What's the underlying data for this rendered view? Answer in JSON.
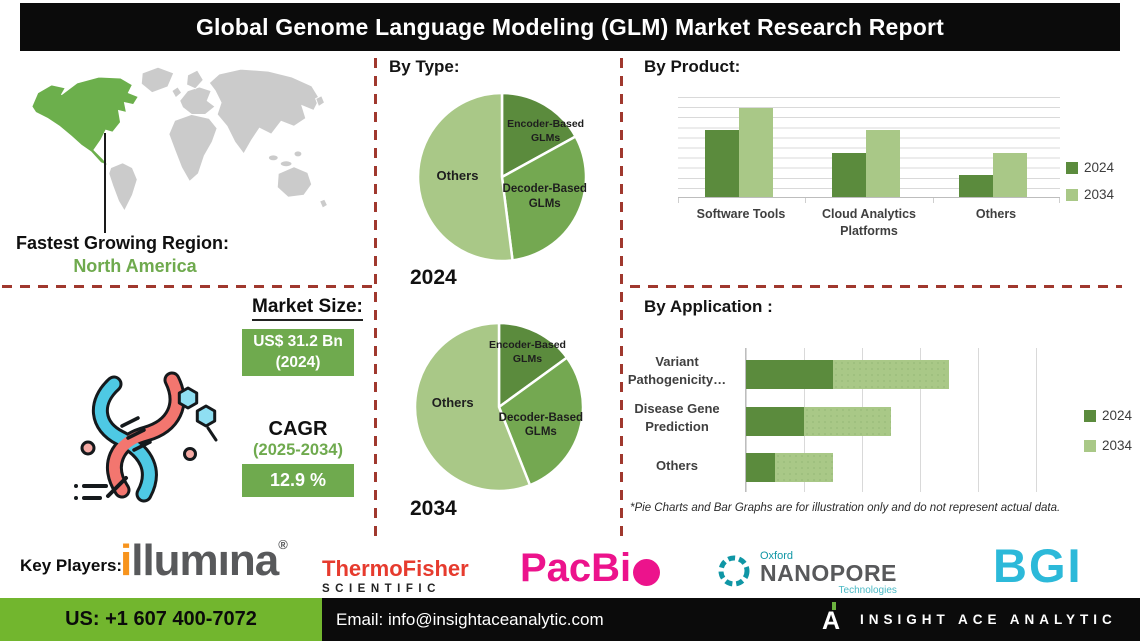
{
  "title": "Global Genome Language Modeling (GLM) Market Research Report",
  "region": {
    "heading": "Fastest Growing Region:",
    "value": "North America"
  },
  "market_size": {
    "heading": "Market Size:",
    "value": "US$ 31.2 Bn",
    "value_year": "(2024)",
    "cagr_label": "CAGR",
    "cagr_period": "(2025-2034)",
    "cagr_value": "12.9 %"
  },
  "by_type": {
    "heading": "By Type:"
  },
  "footnote": "*Pie Charts and Bar Graphs are for illustration only and do not represent actual data.",
  "key_players": {
    "label": "Key Players:",
    "logos": {
      "illumina": {
        "prefix": "i",
        "rest": "llumına",
        "reg": "®"
      },
      "thermo": {
        "line1": "ThermoFisher",
        "line2": "SCIENTIFIC"
      },
      "pacbio": {
        "text": "PacBi"
      },
      "nanopore": {
        "top": "Oxford",
        "main": "NANOPORE",
        "sub": "Technologies"
      },
      "bgi": {
        "text": "BGI"
      }
    }
  },
  "footer": {
    "phone": "US: +1 607 400-7072",
    "email": "Email: info@insightaceanalytic.com",
    "brand": "INSIGHT ACE ANALYTIC",
    "brand_mark": "A"
  },
  "colors": {
    "green_dark": "#5b8b3d",
    "green_mid": "#74a851",
    "green_light": "#a9c887",
    "accent_green": "#6faa4e",
    "footer_green": "#72b62e",
    "divider_red": "#a0382e",
    "map_gray": "#cbcbcb"
  },
  "chart_data": [
    {
      "id": "pie-2024",
      "type": "pie",
      "year": "2024",
      "labels": [
        "Encoder-Based GLMs",
        "Decoder-Based GLMs",
        "Others"
      ],
      "values": [
        17,
        31,
        52
      ],
      "colors": [
        "#5b8b3d",
        "#74a851",
        "#a9c887"
      ],
      "title": "By Type: 2024"
    },
    {
      "id": "pie-2034",
      "type": "pie",
      "year": "2034",
      "labels": [
        "Encoder-Based GLMs",
        "Decoder-Based GLMs",
        "Others"
      ],
      "values": [
        15,
        29,
        56
      ],
      "colors": [
        "#5b8b3d",
        "#74a851",
        "#a9c887"
      ],
      "title": "By Type: 2034"
    },
    {
      "id": "by-product",
      "type": "bar",
      "title": "By Product:",
      "categories": [
        "Software Tools",
        "Cloud Analytics Platforms",
        "Others"
      ],
      "series": [
        {
          "name": "2024",
          "color": "#5b8b3d",
          "values": [
            6.6,
            4.4,
            2.2
          ]
        },
        {
          "name": "2034",
          "color": "#a9c887",
          "values": [
            8.8,
            6.6,
            4.4
          ]
        }
      ],
      "ylim": [
        0,
        10
      ],
      "grid": true,
      "legend_position": "right"
    },
    {
      "id": "by-application",
      "type": "bar-horizontal-stacked",
      "title": "By Application :",
      "categories": [
        "Variant Pathogenicity…",
        "Disease Gene Prediction",
        "Others"
      ],
      "series": [
        {
          "name": "2024",
          "color": "#5b8b3d",
          "values": [
            15,
            10,
            5
          ]
        },
        {
          "name": "2034",
          "color": "#a9c887",
          "values": [
            20,
            15,
            10
          ]
        }
      ],
      "xlim": [
        0,
        35
      ],
      "grid": true,
      "legend_position": "right"
    }
  ]
}
